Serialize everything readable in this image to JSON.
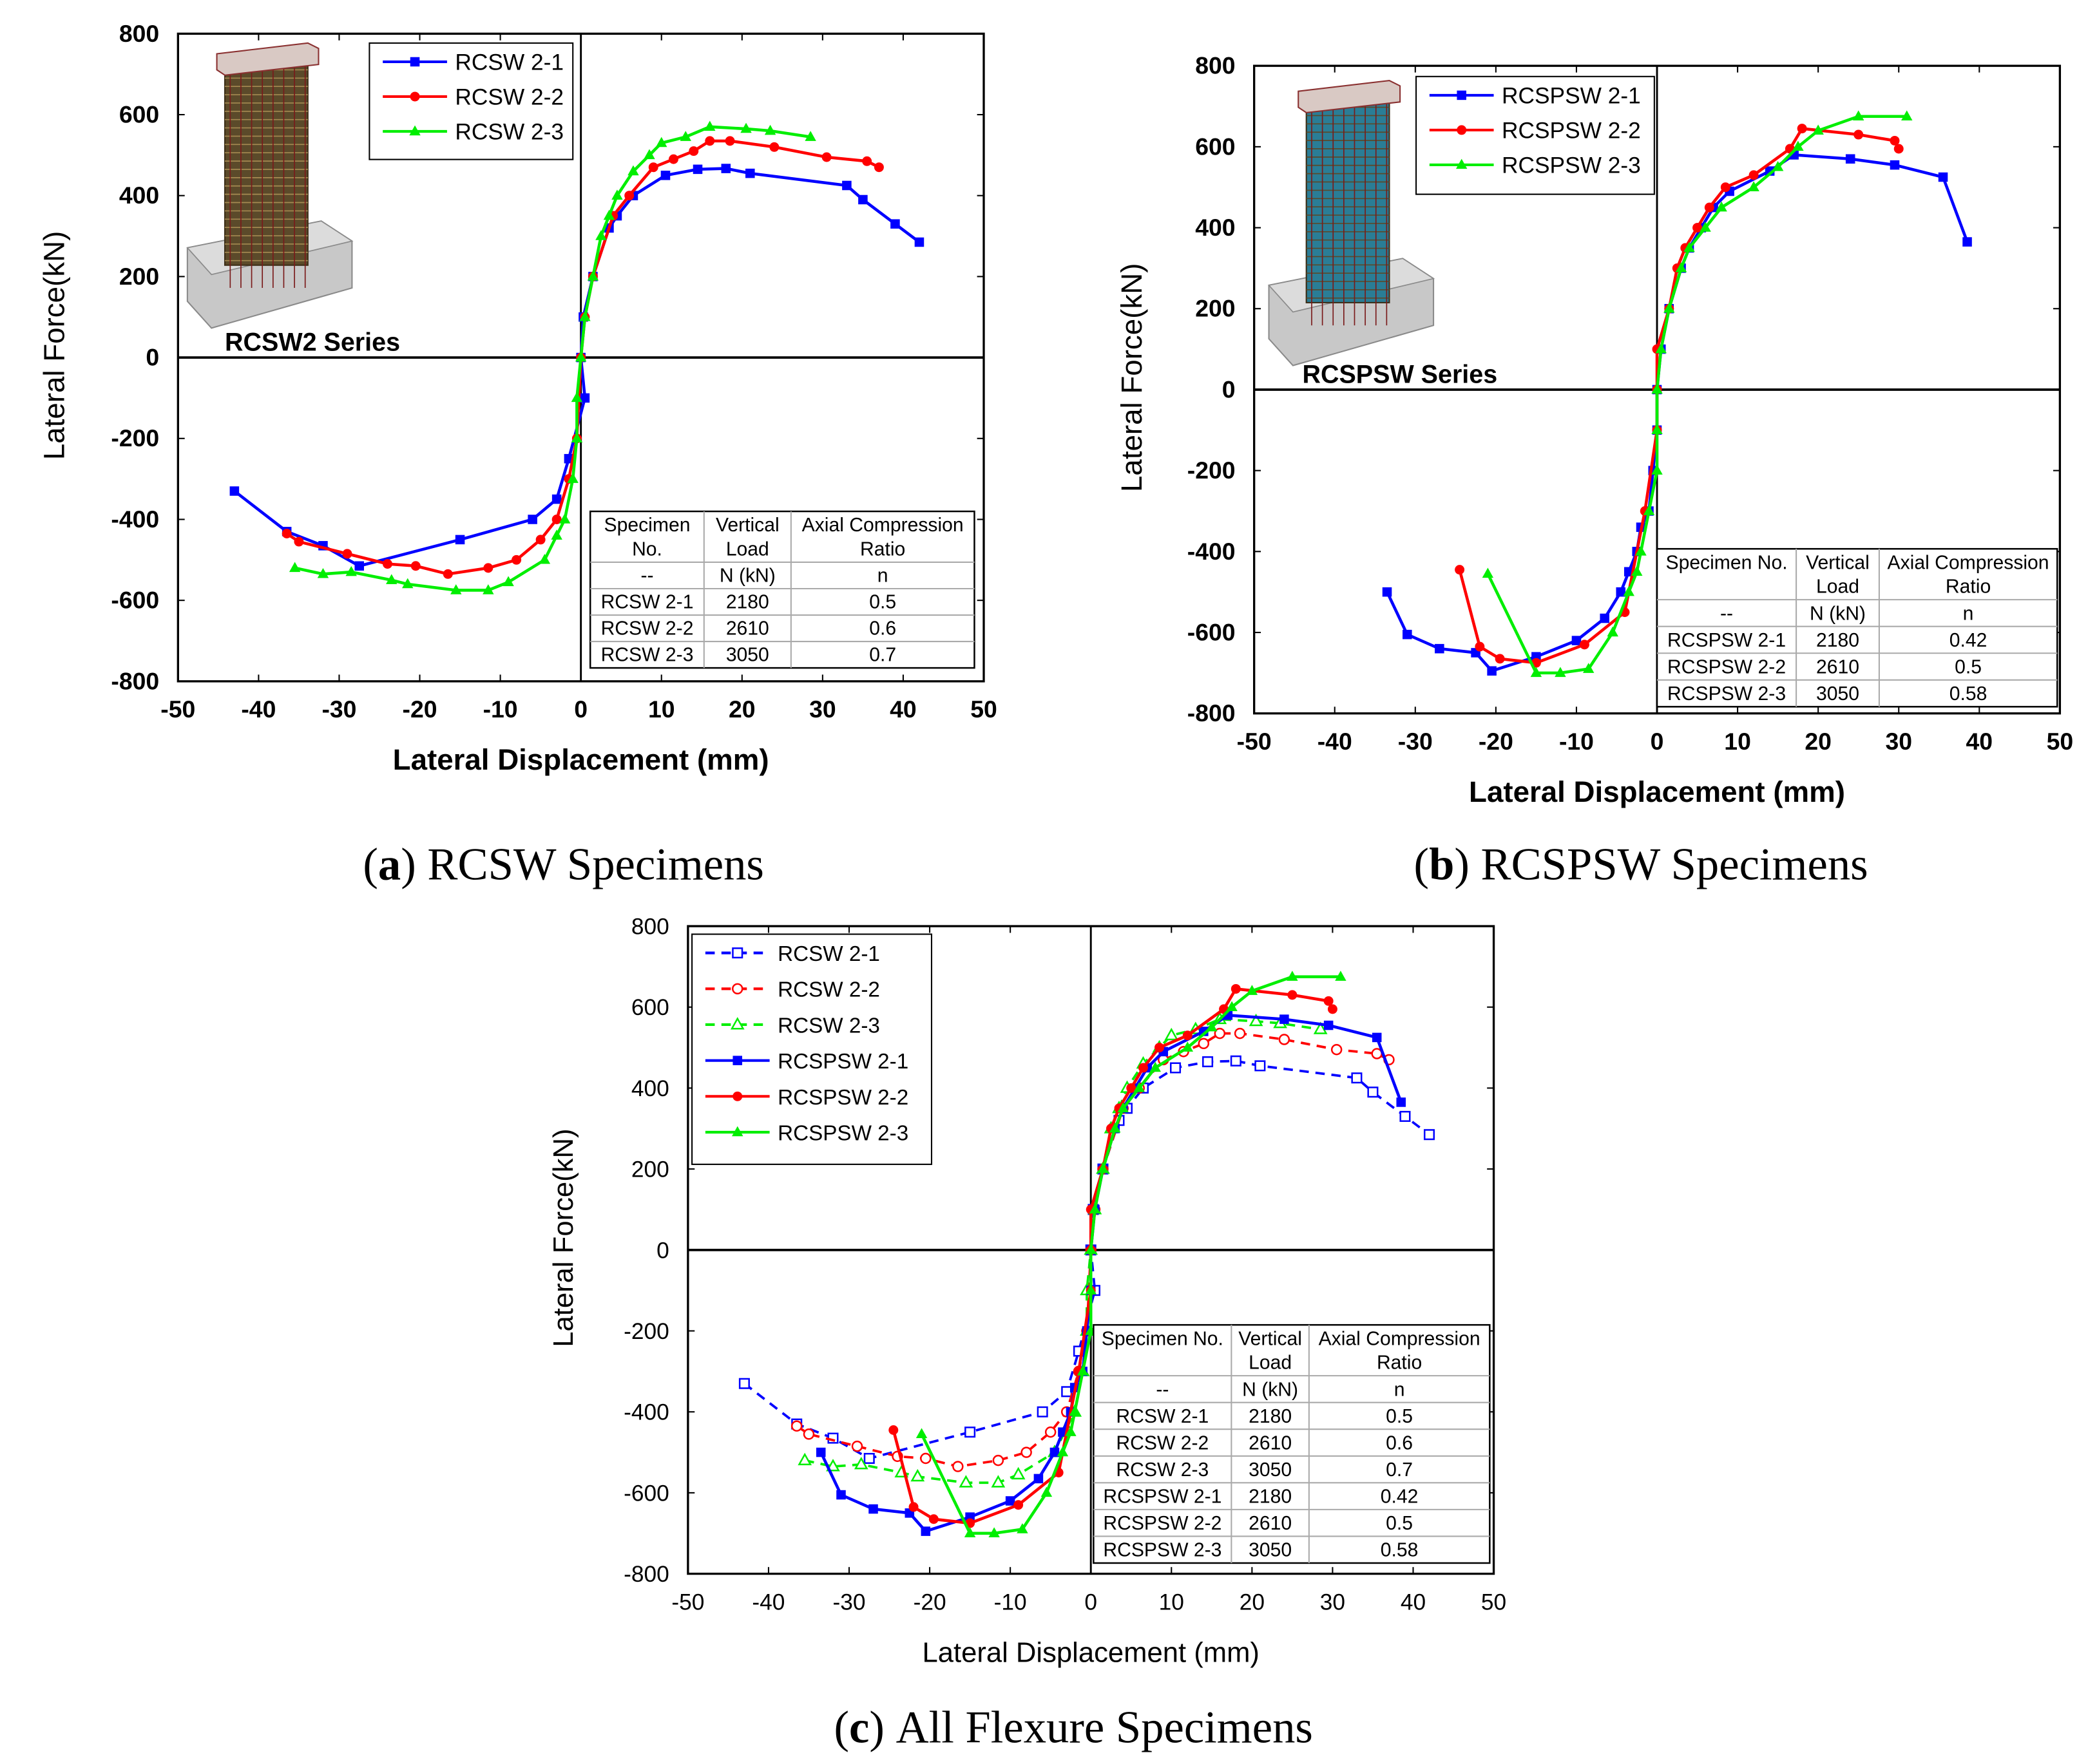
{
  "chart_data": [
    {
      "type": "line",
      "caption_letter": "a",
      "caption_text": "RCSW Specimens",
      "xlabel": "Lateral Displacement (mm)",
      "ylabel": "Lateral Force(kN)",
      "label_bold": true,
      "xlim": [
        -50,
        50
      ],
      "ylim": [
        -800,
        800
      ],
      "xticks": [
        -50,
        -40,
        -30,
        -20,
        -10,
        0,
        10,
        20,
        30,
        40,
        50
      ],
      "yticks": [
        -800,
        -600,
        -400,
        -200,
        0,
        200,
        400,
        600,
        800
      ],
      "inset_label": "RCSW2 Series",
      "inset_type": "rc",
      "legend": "top-left",
      "series": [
        {
          "name": "RCSW 2-1",
          "color": "#0000ff",
          "marker": "square",
          "dashed": false,
          "points": [
            [
              -43,
              -330
            ],
            [
              -36.5,
              -430
            ],
            [
              -32,
              -465
            ],
            [
              -27.5,
              -515
            ],
            [
              -15,
              -450
            ],
            [
              -6,
              -400
            ],
            [
              -3,
              -350
            ],
            [
              -1.5,
              -250
            ],
            [
              0.5,
              -100
            ],
            [
              0,
              0
            ],
            [
              0.3,
              100
            ],
            [
              1.5,
              200
            ],
            [
              3.5,
              320
            ],
            [
              4.5,
              350
            ],
            [
              6.5,
              400
            ],
            [
              10.5,
              450
            ],
            [
              14.5,
              465
            ],
            [
              18,
              467
            ],
            [
              21,
              455
            ],
            [
              33,
              425
            ],
            [
              35,
              390
            ],
            [
              39,
              330
            ],
            [
              42,
              285
            ]
          ]
        },
        {
          "name": "RCSW 2-2",
          "color": "#ff0000",
          "marker": "circle",
          "dashed": false,
          "points": [
            [
              -36.5,
              -435
            ],
            [
              -35,
              -455
            ],
            [
              -29,
              -485
            ],
            [
              -24,
              -510
            ],
            [
              -20.5,
              -515
            ],
            [
              -16.5,
              -535
            ],
            [
              -11.5,
              -520
            ],
            [
              -8,
              -500
            ],
            [
              -5,
              -450
            ],
            [
              -3,
              -400
            ],
            [
              -1.5,
              -300
            ],
            [
              -0.5,
              -200
            ],
            [
              0,
              0
            ],
            [
              0.5,
              100
            ],
            [
              1.5,
              200
            ],
            [
              4,
              350
            ],
            [
              6,
              400
            ],
            [
              9,
              470
            ],
            [
              11.5,
              490
            ],
            [
              14,
              510
            ],
            [
              16,
              535
            ],
            [
              18.5,
              535
            ],
            [
              24,
              520
            ],
            [
              30.5,
              495
            ],
            [
              35.5,
              485
            ],
            [
              37,
              470
            ]
          ]
        },
        {
          "name": "RCSW 2-3",
          "color": "#00ee00",
          "marker": "triangle",
          "dashed": false,
          "points": [
            [
              -35.5,
              -520
            ],
            [
              -32,
              -535
            ],
            [
              -28.5,
              -530
            ],
            [
              -23.5,
              -550
            ],
            [
              -21.5,
              -560
            ],
            [
              -15.5,
              -575
            ],
            [
              -11.5,
              -575
            ],
            [
              -9,
              -555
            ],
            [
              -4.5,
              -500
            ],
            [
              -3,
              -440
            ],
            [
              -2,
              -400
            ],
            [
              -1,
              -300
            ],
            [
              -0.5,
              -200
            ],
            [
              -0.5,
              -100
            ],
            [
              0,
              0
            ],
            [
              0.5,
              100
            ],
            [
              1.5,
              200
            ],
            [
              2.5,
              300
            ],
            [
              3.5,
              350
            ],
            [
              4.5,
              400
            ],
            [
              6.5,
              460
            ],
            [
              8.5,
              500
            ],
            [
              10,
              530
            ],
            [
              13,
              545
            ],
            [
              16,
              570
            ],
            [
              20.5,
              565
            ],
            [
              23.5,
              560
            ],
            [
              28.5,
              545
            ]
          ]
        }
      ],
      "table": {
        "headers": [
          [
            "Specimen",
            "No."
          ],
          [
            "Vertical",
            "Load"
          ],
          [
            "Axial Compression",
            "Ratio"
          ]
        ],
        "units": [
          "--",
          "N (kN)",
          "n"
        ],
        "rows": [
          [
            "RCSW 2-1",
            "2180",
            "0.5"
          ],
          [
            "RCSW 2-2",
            "2610",
            "0.6"
          ],
          [
            "RCSW 2-3",
            "3050",
            "0.7"
          ]
        ]
      }
    },
    {
      "type": "line",
      "caption_letter": "b",
      "caption_text": "RCSPSW Specimens",
      "xlabel": "Lateral Displacement (mm)",
      "ylabel": "Lateral Force(kN)",
      "label_bold": true,
      "xlim": [
        -50,
        50
      ],
      "ylim": [
        -800,
        800
      ],
      "xticks": [
        -50,
        -40,
        -30,
        -20,
        -10,
        0,
        10,
        20,
        30,
        40,
        50
      ],
      "yticks": [
        -800,
        -600,
        -400,
        -200,
        0,
        200,
        400,
        600,
        800
      ],
      "inset_label": "RCSPSW Series",
      "inset_type": "rcsp",
      "legend": "top-left",
      "series": [
        {
          "name": "RCSPSW 2-1",
          "color": "#0000ff",
          "marker": "square",
          "dashed": false,
          "points": [
            [
              -33.5,
              -500
            ],
            [
              -31,
              -605
            ],
            [
              -27,
              -640
            ],
            [
              -22.5,
              -650
            ],
            [
              -20.5,
              -695
            ],
            [
              -15,
              -660
            ],
            [
              -10,
              -620
            ],
            [
              -6.5,
              -565
            ],
            [
              -4.5,
              -500
            ],
            [
              -3.5,
              -450
            ],
            [
              -2.5,
              -400
            ],
            [
              -2,
              -340
            ],
            [
              -1,
              -300
            ],
            [
              -0.5,
              -200
            ],
            [
              0,
              -100
            ],
            [
              0,
              0
            ],
            [
              0.5,
              100
            ],
            [
              1.5,
              200
            ],
            [
              3,
              300
            ],
            [
              4,
              350
            ],
            [
              5.5,
              400
            ],
            [
              7,
              450
            ],
            [
              9,
              490
            ],
            [
              14,
              540
            ],
            [
              17,
              580
            ],
            [
              24,
              570
            ],
            [
              29.5,
              555
            ],
            [
              35.5,
              525
            ],
            [
              38.5,
              365
            ]
          ]
        },
        {
          "name": "RCSPSW 2-2",
          "color": "#ff0000",
          "marker": "circle",
          "dashed": false,
          "points": [
            [
              -24.5,
              -445
            ],
            [
              -22,
              -635
            ],
            [
              -19.5,
              -665
            ],
            [
              -15,
              -675
            ],
            [
              -9,
              -630
            ],
            [
              -4,
              -550
            ],
            [
              -1.5,
              -300
            ],
            [
              0,
              -100
            ],
            [
              0,
              0
            ],
            [
              0,
              100
            ],
            [
              1.5,
              200
            ],
            [
              2.5,
              300
            ],
            [
              3.5,
              350
            ],
            [
              5,
              400
            ],
            [
              6.5,
              450
            ],
            [
              8.5,
              500
            ],
            [
              12,
              530
            ],
            [
              16.5,
              595
            ],
            [
              18,
              645
            ],
            [
              25,
              630
            ],
            [
              29.5,
              615
            ],
            [
              30,
              595
            ]
          ]
        },
        {
          "name": "RCSPSW 2-3",
          "color": "#00ee00",
          "marker": "triangle",
          "dashed": false,
          "points": [
            [
              -21,
              -455
            ],
            [
              -15,
              -700
            ],
            [
              -12,
              -700
            ],
            [
              -8.5,
              -690
            ],
            [
              -5.5,
              -600
            ],
            [
              -3.5,
              -500
            ],
            [
              -2.5,
              -450
            ],
            [
              -2,
              -400
            ],
            [
              -1,
              -300
            ],
            [
              0,
              -200
            ],
            [
              0,
              -100
            ],
            [
              0,
              0
            ],
            [
              0.5,
              100
            ],
            [
              1.5,
              200
            ],
            [
              3,
              300
            ],
            [
              4,
              350
            ],
            [
              6,
              400
            ],
            [
              8,
              450
            ],
            [
              12,
              500
            ],
            [
              15,
              550
            ],
            [
              17.5,
              600
            ],
            [
              20,
              640
            ],
            [
              25,
              675
            ],
            [
              31,
              675
            ]
          ]
        }
      ],
      "table": {
        "headers": [
          [
            "Specimen No.",
            ""
          ],
          [
            "Vertical",
            "Load"
          ],
          [
            "Axial Compression",
            "Ratio"
          ]
        ],
        "units": [
          "--",
          "N (kN)",
          "n"
        ],
        "rows": [
          [
            "RCSPSW 2-1",
            "2180",
            "0.42"
          ],
          [
            "RCSPSW 2-2",
            "2610",
            "0.5"
          ],
          [
            "RCSPSW 2-3",
            "3050",
            "0.58"
          ]
        ]
      }
    },
    {
      "type": "line",
      "caption_letter": "c",
      "caption_text": "All Flexure Specimens",
      "xlabel": "Lateral Displacement (mm)",
      "ylabel": "Lateral Force(kN)",
      "label_bold": false,
      "xlim": [
        -50,
        50
      ],
      "ylim": [
        -800,
        800
      ],
      "xticks": [
        -50,
        -40,
        -30,
        -20,
        -10,
        0,
        10,
        20,
        30,
        40,
        50
      ],
      "yticks": [
        -800,
        -600,
        -400,
        -200,
        0,
        200,
        400,
        600,
        800
      ],
      "legend": "top-left",
      "series": [
        {
          "name": "RCSW 2-1",
          "color": "#0000ff",
          "marker": "square",
          "dashed": true,
          "open": true,
          "same_points_as": [
            0,
            0
          ]
        },
        {
          "name": "RCSW 2-2",
          "color": "#ff0000",
          "marker": "circle",
          "dashed": true,
          "open": true,
          "same_points_as": [
            0,
            1
          ]
        },
        {
          "name": "RCSW 2-3",
          "color": "#00ee00",
          "marker": "triangle",
          "dashed": true,
          "open": true,
          "same_points_as": [
            0,
            2
          ]
        },
        {
          "name": "RCSPSW 2-1",
          "color": "#0000ff",
          "marker": "square",
          "dashed": false,
          "open": false,
          "same_points_as": [
            1,
            0
          ]
        },
        {
          "name": "RCSPSW 2-2",
          "color": "#ff0000",
          "marker": "circle",
          "dashed": false,
          "open": false,
          "same_points_as": [
            1,
            1
          ]
        },
        {
          "name": "RCSPSW 2-3",
          "color": "#00ee00",
          "marker": "triangle",
          "dashed": false,
          "open": false,
          "same_points_as": [
            1,
            2
          ]
        }
      ],
      "table": {
        "headers": [
          [
            "Specimen No.",
            ""
          ],
          [
            "Vertical",
            "Load"
          ],
          [
            "Axial Compression",
            "Ratio"
          ]
        ],
        "units": [
          "--",
          "N (kN)",
          "n"
        ],
        "rows": [
          [
            "RCSW 2-1",
            "2180",
            "0.5"
          ],
          [
            "RCSW 2-2",
            "2610",
            "0.6"
          ],
          [
            "RCSW 2-3",
            "3050",
            "0.7"
          ],
          [
            "RCSPSW 2-1",
            "2180",
            "0.42"
          ],
          [
            "RCSPSW 2-2",
            "2610",
            "0.5"
          ],
          [
            "RCSPSW 2-3",
            "3050",
            "0.58"
          ]
        ]
      }
    }
  ]
}
